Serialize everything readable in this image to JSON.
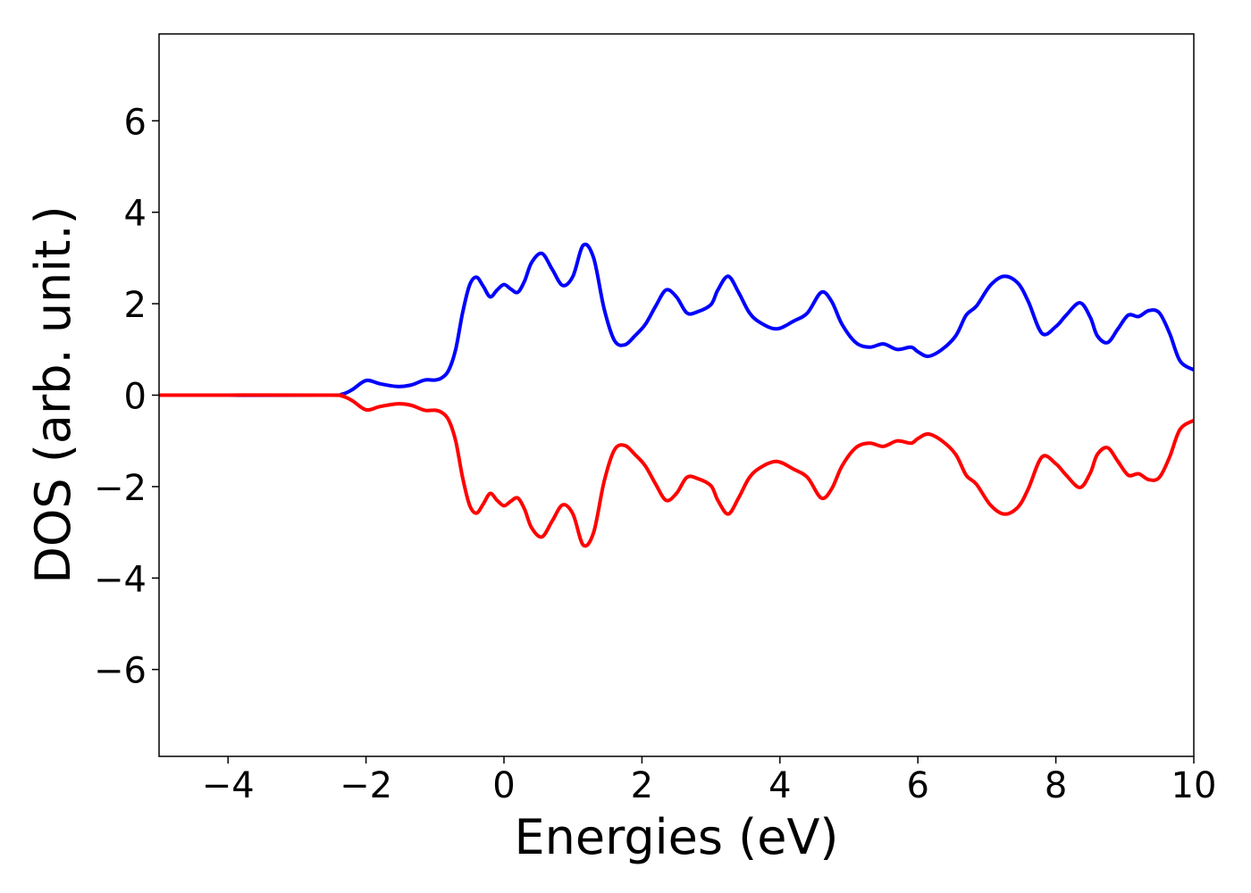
{
  "chart_data": {
    "type": "line",
    "title": "",
    "xlabel": "Energies (eV)",
    "ylabel": "DOS (arb. unit.)",
    "xlim": [
      -5,
      10
    ],
    "ylim": [
      -7.9,
      7.9
    ],
    "xticks": [
      -4,
      -2,
      0,
      2,
      4,
      6,
      8,
      10
    ],
    "yticks": [
      -6,
      -4,
      -2,
      0,
      2,
      4,
      6
    ],
    "xtick_labels": [
      "−4",
      "−2",
      "0",
      "2",
      "4",
      "6",
      "8",
      "10"
    ],
    "ytick_labels": [
      "−6",
      "−4",
      "−2",
      "0",
      "2",
      "4",
      "6"
    ],
    "grid": false,
    "legend": "none",
    "colors": {
      "up": "#0000ff",
      "down": "#ff0000",
      "axes": "#000000"
    },
    "x": [
      -5.0,
      -2.6,
      -2.35,
      -2.2,
      -2.0,
      -1.8,
      -1.55,
      -1.35,
      -1.15,
      -1.0,
      -0.9,
      -0.8,
      -0.7,
      -0.6,
      -0.5,
      -0.4,
      -0.3,
      -0.2,
      -0.1,
      0.0,
      0.1,
      0.2,
      0.3,
      0.4,
      0.55,
      0.7,
      0.85,
      1.0,
      1.15,
      1.3,
      1.45,
      1.6,
      1.75,
      1.9,
      2.05,
      2.2,
      2.35,
      2.5,
      2.65,
      2.8,
      3.0,
      3.1,
      3.25,
      3.4,
      3.55,
      3.7,
      3.95,
      4.2,
      4.4,
      4.6,
      4.75,
      4.9,
      5.1,
      5.3,
      5.5,
      5.7,
      5.9,
      6.0,
      6.15,
      6.35,
      6.55,
      6.7,
      6.85,
      7.05,
      7.25,
      7.45,
      7.6,
      7.8,
      8.0,
      8.15,
      8.35,
      8.5,
      8.6,
      8.75,
      8.9,
      9.05,
      9.2,
      9.35,
      9.5,
      9.65,
      9.8,
      10.0
    ],
    "series": [
      {
        "key": "up",
        "values": [
          0.0,
          0.0,
          0.02,
          0.12,
          0.32,
          0.25,
          0.19,
          0.22,
          0.33,
          0.33,
          0.38,
          0.55,
          1.0,
          1.8,
          2.4,
          2.58,
          2.38,
          2.15,
          2.3,
          2.42,
          2.32,
          2.25,
          2.5,
          2.9,
          3.1,
          2.75,
          2.4,
          2.6,
          3.28,
          3.0,
          1.9,
          1.2,
          1.1,
          1.3,
          1.55,
          1.95,
          2.3,
          2.15,
          1.8,
          1.82,
          1.98,
          2.3,
          2.6,
          2.25,
          1.82,
          1.6,
          1.45,
          1.62,
          1.8,
          2.25,
          2.05,
          1.55,
          1.15,
          1.05,
          1.12,
          1.0,
          1.05,
          0.95,
          0.85,
          1.0,
          1.3,
          1.75,
          1.95,
          2.4,
          2.6,
          2.45,
          2.05,
          1.35,
          1.5,
          1.75,
          2.02,
          1.7,
          1.3,
          1.15,
          1.45,
          1.75,
          1.72,
          1.85,
          1.8,
          1.35,
          0.75,
          0.55
        ]
      },
      {
        "key": "down",
        "values": [
          0.0,
          0.0,
          -0.02,
          -0.12,
          -0.32,
          -0.25,
          -0.19,
          -0.22,
          -0.33,
          -0.33,
          -0.38,
          -0.55,
          -1.0,
          -1.8,
          -2.4,
          -2.58,
          -2.38,
          -2.15,
          -2.3,
          -2.42,
          -2.32,
          -2.25,
          -2.5,
          -2.9,
          -3.1,
          -2.75,
          -2.4,
          -2.6,
          -3.28,
          -3.0,
          -1.9,
          -1.2,
          -1.1,
          -1.3,
          -1.55,
          -1.95,
          -2.3,
          -2.15,
          -1.8,
          -1.82,
          -1.98,
          -2.3,
          -2.6,
          -2.25,
          -1.82,
          -1.6,
          -1.45,
          -1.62,
          -1.8,
          -2.25,
          -2.05,
          -1.55,
          -1.15,
          -1.05,
          -1.12,
          -1.0,
          -1.05,
          -0.95,
          -0.85,
          -1.0,
          -1.3,
          -1.75,
          -1.95,
          -2.4,
          -2.6,
          -2.45,
          -2.05,
          -1.35,
          -1.5,
          -1.75,
          -2.02,
          -1.7,
          -1.3,
          -1.15,
          -1.45,
          -1.75,
          -1.72,
          -1.85,
          -1.8,
          -1.35,
          -0.75,
          -0.55
        ]
      }
    ]
  }
}
